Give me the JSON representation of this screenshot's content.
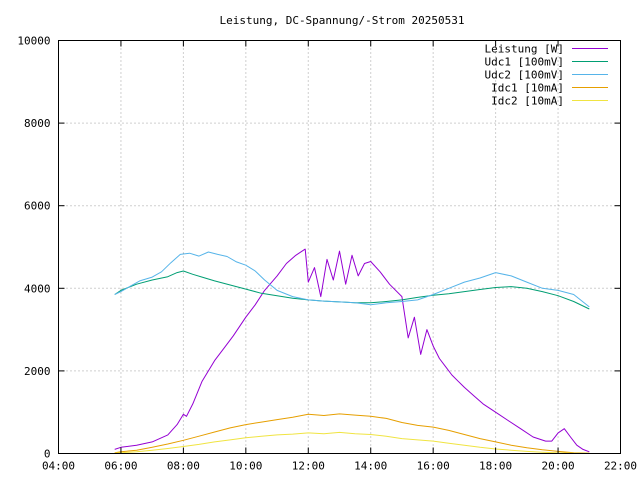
{
  "chart_data": {
    "type": "line",
    "title": "Leistung, DC-Spannung/-Strom 20250531",
    "xlabel": "",
    "ylabel": "",
    "xlim": [
      4,
      22
    ],
    "ylim": [
      0,
      10000
    ],
    "grid": true,
    "legend_position": "top-right",
    "x_ticks": [
      4,
      6,
      8,
      10,
      12,
      14,
      16,
      18,
      20,
      22
    ],
    "x_tick_labels": [
      "04:00",
      "06:00",
      "08:00",
      "10:00",
      "12:00",
      "14:00",
      "16:00",
      "18:00",
      "20:00",
      "22:00"
    ],
    "y_ticks": [
      0,
      2000,
      4000,
      6000,
      8000,
      10000
    ],
    "y_tick_labels": [
      "0",
      "2000",
      "4000",
      "6000",
      "8000",
      "10000"
    ],
    "series": [
      {
        "name": "Leistung [W]",
        "color": "#9400d3",
        "x": [
          5.8,
          6.0,
          6.5,
          7.0,
          7.5,
          7.8,
          8.0,
          8.1,
          8.3,
          8.6,
          9.0,
          9.3,
          9.6,
          10.0,
          10.3,
          10.6,
          11.0,
          11.3,
          11.6,
          11.9,
          12.0,
          12.2,
          12.4,
          12.6,
          12.8,
          13.0,
          13.2,
          13.4,
          13.6,
          13.8,
          14.0,
          14.3,
          14.6,
          15.0,
          15.2,
          15.4,
          15.6,
          15.8,
          16.0,
          16.2,
          16.4,
          16.6,
          16.8,
          17.0,
          17.3,
          17.6,
          18.0,
          18.4,
          18.8,
          19.2,
          19.6,
          19.8,
          20.0,
          20.2,
          20.4,
          20.6,
          20.8,
          21.0
        ],
        "y": [
          100,
          150,
          200,
          280,
          450,
          700,
          950,
          900,
          1200,
          1750,
          2250,
          2550,
          2850,
          3300,
          3600,
          3950,
          4300,
          4600,
          4800,
          4950,
          4150,
          4500,
          3800,
          4700,
          4200,
          4900,
          4100,
          4800,
          4300,
          4600,
          4650,
          4400,
          4100,
          3800,
          2800,
          3300,
          2400,
          3000,
          2600,
          2300,
          2100,
          1900,
          1750,
          1600,
          1400,
          1200,
          1000,
          800,
          600,
          400,
          300,
          300,
          500,
          600,
          400,
          200,
          100,
          40
        ]
      },
      {
        "name": "Udc1 [100mV]",
        "color": "#009e73",
        "x": [
          5.8,
          6.0,
          6.5,
          7.0,
          7.5,
          7.8,
          8.0,
          8.3,
          8.6,
          9.0,
          9.5,
          10.0,
          10.5,
          11.0,
          11.5,
          12.0,
          12.5,
          13.0,
          13.5,
          14.0,
          14.5,
          15.0,
          15.5,
          16.0,
          16.5,
          17.0,
          17.5,
          18.0,
          18.5,
          19.0,
          19.5,
          20.0,
          20.5,
          21.0
        ],
        "y": [
          3850,
          3950,
          4100,
          4200,
          4280,
          4380,
          4420,
          4340,
          4270,
          4180,
          4080,
          3980,
          3880,
          3820,
          3760,
          3720,
          3690,
          3670,
          3650,
          3650,
          3680,
          3720,
          3780,
          3830,
          3870,
          3920,
          3970,
          4020,
          4040,
          4000,
          3920,
          3820,
          3680,
          3500
        ]
      },
      {
        "name": "Udc2 [100mV]",
        "color": "#56b4e9",
        "x": [
          5.8,
          6.0,
          6.3,
          6.6,
          7.0,
          7.3,
          7.6,
          7.9,
          8.2,
          8.5,
          8.8,
          9.1,
          9.4,
          9.7,
          10.0,
          10.3,
          10.6,
          11.0,
          11.5,
          12.0,
          12.5,
          13.0,
          13.5,
          14.0,
          14.5,
          15.0,
          15.5,
          16.0,
          16.5,
          17.0,
          17.5,
          18.0,
          18.5,
          19.0,
          19.5,
          20.0,
          20.5,
          21.0
        ],
        "y": [
          3850,
          3920,
          4050,
          4180,
          4270,
          4400,
          4620,
          4820,
          4850,
          4780,
          4880,
          4820,
          4770,
          4640,
          4560,
          4420,
          4200,
          3950,
          3800,
          3720,
          3690,
          3670,
          3650,
          3600,
          3650,
          3680,
          3720,
          3850,
          4000,
          4150,
          4250,
          4380,
          4300,
          4150,
          4000,
          3950,
          3850,
          3550
        ]
      },
      {
        "name": "Idc1 [10mA]",
        "color": "#e69f00",
        "x": [
          5.8,
          6.0,
          6.5,
          7.0,
          7.5,
          8.0,
          8.5,
          9.0,
          9.5,
          10.0,
          10.5,
          11.0,
          11.5,
          12.0,
          12.5,
          13.0,
          13.5,
          14.0,
          14.5,
          15.0,
          15.5,
          16.0,
          16.5,
          17.0,
          17.5,
          18.0,
          18.5,
          19.0,
          19.5,
          20.0,
          20.5,
          21.0
        ],
        "y": [
          20,
          40,
          80,
          150,
          230,
          320,
          420,
          520,
          620,
          700,
          760,
          820,
          880,
          950,
          920,
          960,
          930,
          900,
          850,
          750,
          680,
          640,
          560,
          460,
          360,
          280,
          200,
          140,
          90,
          50,
          20,
          10
        ]
      },
      {
        "name": "Idc2 [10mA]",
        "color": "#f0e442",
        "x": [
          5.8,
          6.0,
          6.5,
          7.0,
          7.5,
          8.0,
          8.5,
          9.0,
          9.5,
          10.0,
          10.5,
          11.0,
          11.5,
          12.0,
          12.5,
          13.0,
          13.5,
          14.0,
          14.5,
          15.0,
          15.5,
          16.0,
          16.5,
          17.0,
          17.5,
          18.0,
          18.5,
          19.0,
          19.5,
          20.0,
          20.5,
          21.0
        ],
        "y": [
          10,
          20,
          40,
          80,
          120,
          170,
          220,
          280,
          330,
          380,
          420,
          450,
          470,
          500,
          480,
          510,
          480,
          460,
          420,
          360,
          330,
          300,
          250,
          200,
          150,
          110,
          80,
          50,
          30,
          15,
          8,
          4
        ]
      }
    ]
  }
}
